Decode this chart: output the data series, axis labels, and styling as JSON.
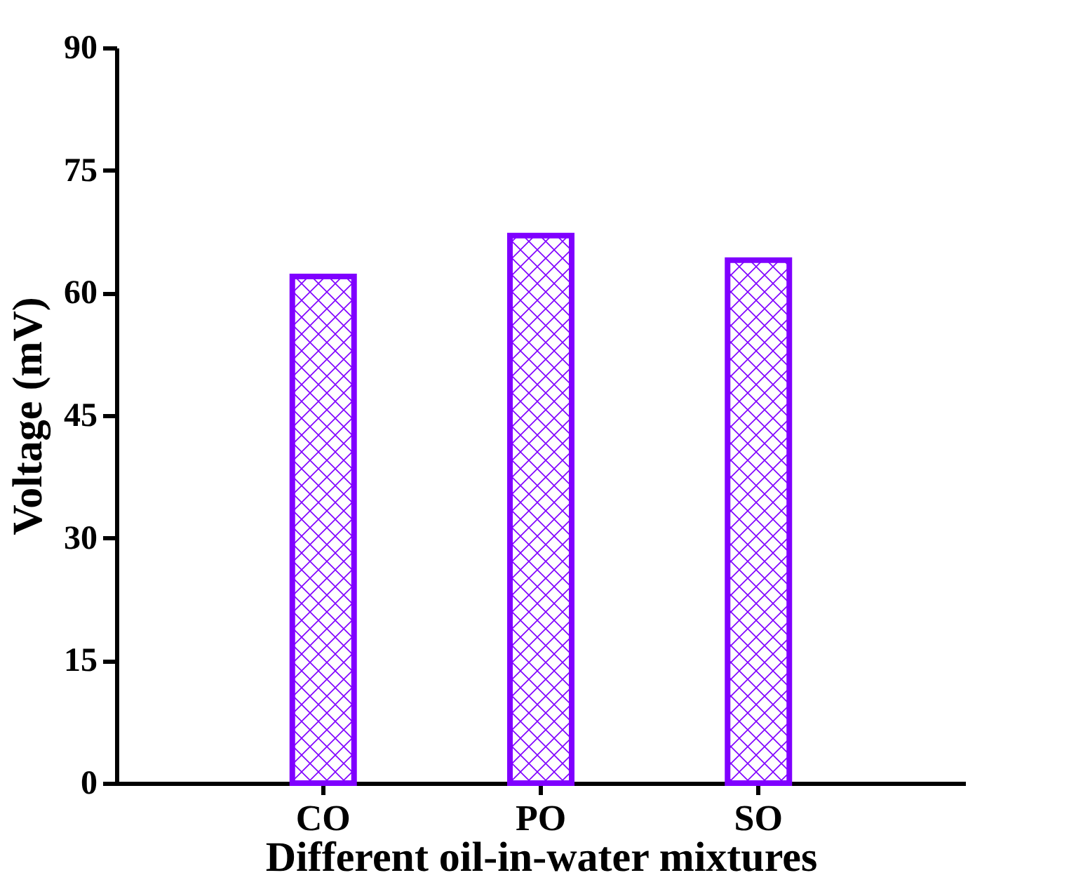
{
  "chart_data": {
    "type": "bar",
    "xlabel": "Different oil-in-water mixtures",
    "ylabel": "Voltage (mV)",
    "categories": [
      "CO",
      "PO",
      "SO"
    ],
    "series": [
      {
        "color": "#7f00ff",
        "values": [
          62,
          67,
          64
        ]
      }
    ],
    "ylim": [
      0,
      90
    ],
    "yticks": [
      0,
      15,
      30,
      45,
      60,
      75,
      90
    ],
    "grid": false
  }
}
